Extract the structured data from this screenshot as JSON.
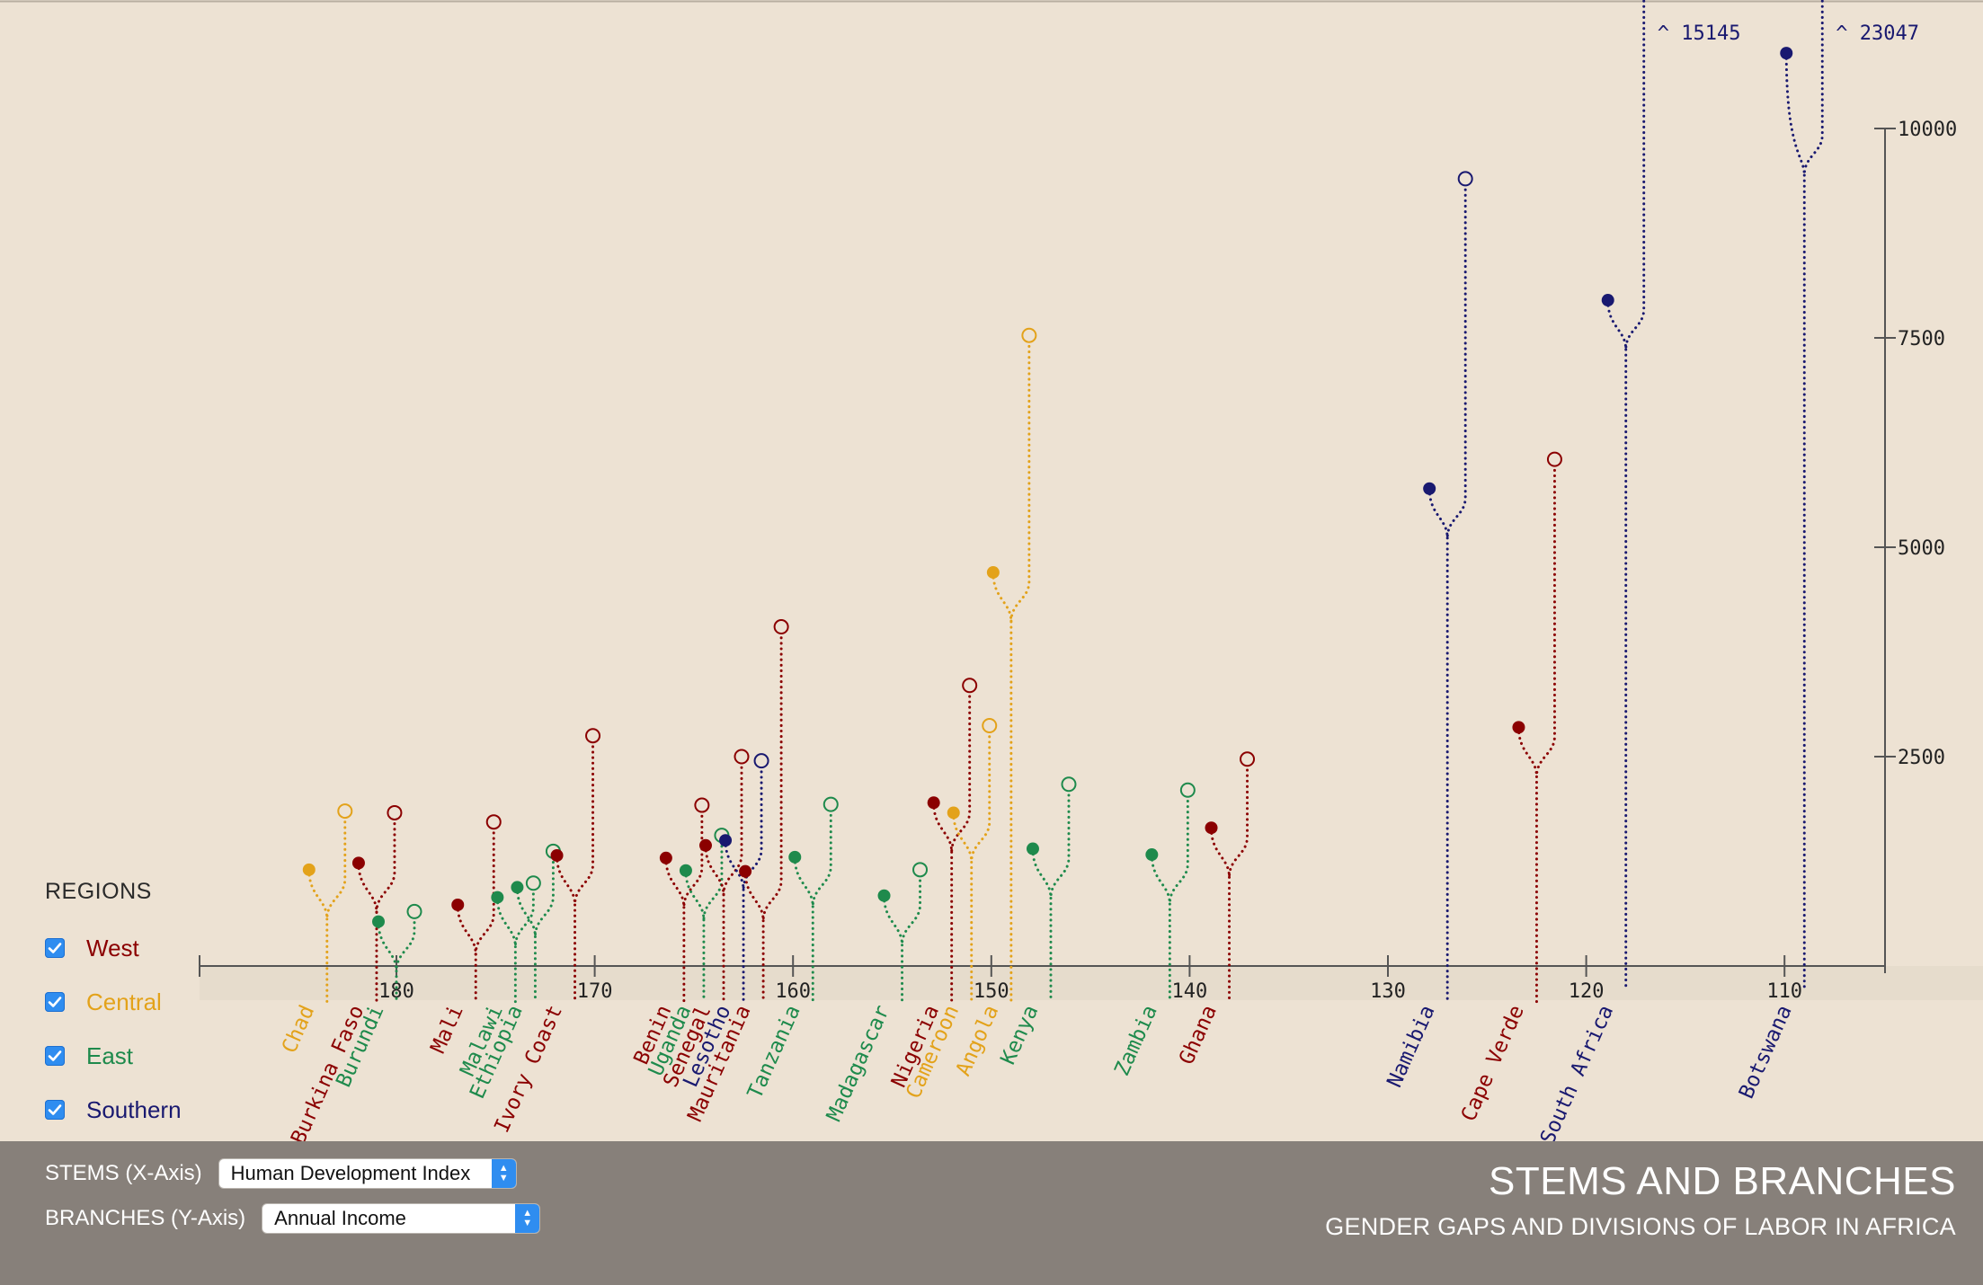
{
  "chart_data": {
    "type": "scatter",
    "title": "",
    "xlabel": "Human Development Index",
    "ylabel": "Annual Income",
    "x_reversed": true,
    "xlim": [
      186,
      105
    ],
    "ylim": [
      0,
      10000
    ],
    "x_ticks": [
      "180",
      "170",
      "160",
      "150",
      "140",
      "130",
      "120",
      "110"
    ],
    "y_ticks": [
      "2500",
      "5000",
      "7500",
      "10000"
    ],
    "encoding": "Each country is a stem at its x value; the filled dot and the open dot end the two branches (annual income values).",
    "regions": [
      {
        "name": "West",
        "color": "#8b0000"
      },
      {
        "name": "Central",
        "color": "#e3a21a"
      },
      {
        "name": "East",
        "color": "#1e8a4c"
      },
      {
        "name": "Southern",
        "color": "#191970"
      }
    ],
    "countries": [
      {
        "name": "Chad",
        "region": "Central",
        "x": 183.5,
        "filled": 1150,
        "open": 1850
      },
      {
        "name": "Burkina Faso",
        "region": "West",
        "x": 181,
        "filled": 1230,
        "open": 1830
      },
      {
        "name": "Burundi",
        "region": "East",
        "x": 180,
        "filled": 530,
        "open": 650
      },
      {
        "name": "Mali",
        "region": "West",
        "x": 176,
        "filled": 730,
        "open": 1720
      },
      {
        "name": "Malawi",
        "region": "East",
        "x": 174,
        "filled": 820,
        "open": 990
      },
      {
        "name": "Ethiopia",
        "region": "East",
        "x": 173,
        "filled": 940,
        "open": 1370
      },
      {
        "name": "Ivory Coast",
        "region": "West",
        "x": 171,
        "filled": 1320,
        "open": 2750
      },
      {
        "name": "Benin",
        "region": "West",
        "x": 165.5,
        "filled": 1290,
        "open": 1920
      },
      {
        "name": "Uganda",
        "region": "East",
        "x": 164.5,
        "filled": 1140,
        "open": 1560
      },
      {
        "name": "Senegal",
        "region": "West",
        "x": 163.5,
        "filled": 1440,
        "open": 2500
      },
      {
        "name": "Lesotho",
        "region": "Southern",
        "x": 162.5,
        "filled": 1500,
        "open": 2450
      },
      {
        "name": "Mauritania",
        "region": "West",
        "x": 161.5,
        "filled": 1130,
        "open": 4050
      },
      {
        "name": "Tanzania",
        "region": "East",
        "x": 159,
        "filled": 1300,
        "open": 1930
      },
      {
        "name": "Madagascar",
        "region": "East",
        "x": 154.5,
        "filled": 840,
        "open": 1150
      },
      {
        "name": "Nigeria",
        "region": "West",
        "x": 152,
        "filled": 1950,
        "open": 3350
      },
      {
        "name": "Cameroon",
        "region": "Central",
        "x": 151,
        "filled": 1830,
        "open": 2870
      },
      {
        "name": "Angola",
        "region": "Central",
        "x": 149,
        "filled": 4700,
        "open": 7530
      },
      {
        "name": "Kenya",
        "region": "East",
        "x": 147,
        "filled": 1400,
        "open": 2170
      },
      {
        "name": "Zambia",
        "region": "East",
        "x": 141,
        "filled": 1330,
        "open": 2100
      },
      {
        "name": "Ghana",
        "region": "West",
        "x": 138,
        "filled": 1650,
        "open": 2470
      },
      {
        "name": "Namibia",
        "region": "Southern",
        "x": 127,
        "filled": 5700,
        "open": 9400
      },
      {
        "name": "Cape Verde",
        "region": "West",
        "x": 122.5,
        "filled": 2850,
        "open": 6050
      },
      {
        "name": "South Africa",
        "region": "Southern",
        "x": 118,
        "filled": 7950,
        "open": 15145,
        "open_label": "^ 15145"
      },
      {
        "name": "Botswana",
        "region": "Southern",
        "x": 109,
        "filled": 10900,
        "open": 23047,
        "open_label": "^ 23047"
      }
    ]
  },
  "regions_panel": {
    "title": "REGIONS",
    "items": [
      {
        "label": "West",
        "color": "#8b0000",
        "checked": true
      },
      {
        "label": "Central",
        "color": "#e3a21a",
        "checked": true
      },
      {
        "label": "East",
        "color": "#1e8a4c",
        "checked": true
      },
      {
        "label": "Southern",
        "color": "#191970",
        "checked": true
      }
    ]
  },
  "controls": {
    "stems_label": "STEMS (X-Axis)",
    "stems_value": "Human Development Index",
    "branches_label": "BRANCHES (Y-Axis)",
    "branches_value": "Annual Income"
  },
  "header": {
    "title": "STEMS AND BRANCHES",
    "subtitle": "GENDER GAPS AND DIVISIONS OF LABOR IN AFRICA"
  }
}
